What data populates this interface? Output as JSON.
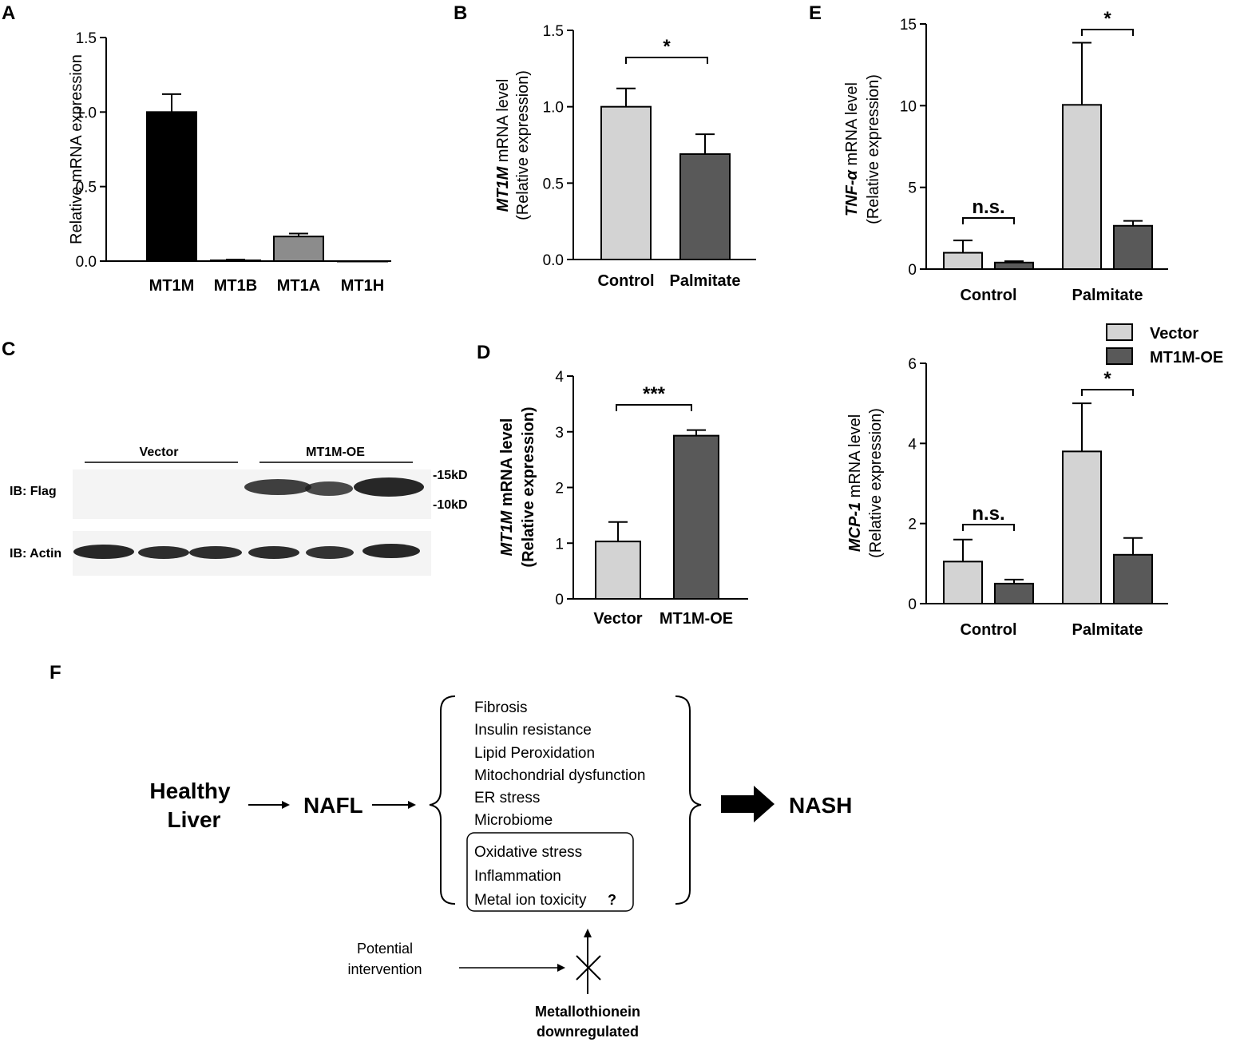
{
  "colors": {
    "black": "#000000",
    "light": "#d3d3d3",
    "dark": "#595959",
    "mid": "#8c8c8c"
  },
  "chart_data": [
    {
      "panel": "A",
      "type": "bar",
      "ylabel": "Relative mRNA expression",
      "categories": [
        "MT1M",
        "MT1B",
        "MT1A",
        "MT1H"
      ],
      "values": [
        1.0,
        0.005,
        0.165,
        0.0
      ],
      "errors": [
        0.12,
        0.005,
        0.02,
        0.0
      ],
      "yticks": [
        "0.0",
        "0.5",
        "1.0",
        "1.5"
      ],
      "ylim": [
        0,
        1.5
      ]
    },
    {
      "panel": "B",
      "type": "bar",
      "ylabel_gene": "MT1M",
      "ylabel_rest": " mRNA level",
      "ylabel2": "(Relative expression)",
      "categories": [
        "Control",
        "Palmitate"
      ],
      "values": [
        1.0,
        0.69
      ],
      "errors": [
        0.12,
        0.13
      ],
      "yticks": [
        "0.0",
        "0.5",
        "1.0",
        "1.5"
      ],
      "ylim": [
        0,
        1.5
      ],
      "significance": "*"
    },
    {
      "panel": "D",
      "type": "bar",
      "ylabel_gene": "MT1M",
      "ylabel_rest": " mRNA level",
      "ylabel2": "(Relative expression)",
      "categories": [
        "Vector",
        "MT1M-OE"
      ],
      "values": [
        1.03,
        2.93
      ],
      "errors": [
        0.35,
        0.1
      ],
      "yticks": [
        "0",
        "1",
        "2",
        "3",
        "4"
      ],
      "ylim": [
        0,
        4
      ],
      "significance": "***"
    },
    {
      "panel": "E-top",
      "type": "bar",
      "ylabel_gene": "TNF-α",
      "ylabel_rest": " mRNA level",
      "ylabel2": "(Relative expression)",
      "categories": [
        "Control",
        "Palmitate"
      ],
      "series": [
        {
          "name": "Vector",
          "values": [
            1.0,
            10.05
          ],
          "errors": [
            0.75,
            3.8
          ]
        },
        {
          "name": "MT1M-OE",
          "values": [
            0.4,
            2.65
          ],
          "errors": [
            0.08,
            0.3
          ]
        }
      ],
      "yticks": [
        "0",
        "5",
        "10",
        "15"
      ],
      "ylim": [
        0,
        15
      ],
      "significance": [
        "n.s.",
        "*"
      ]
    },
    {
      "panel": "E-bottom",
      "type": "bar",
      "ylabel_gene": "MCP-1",
      "ylabel_rest": " mRNA level",
      "ylabel2": "(Relative expression)",
      "categories": [
        "Control",
        "Palmitate"
      ],
      "series": [
        {
          "name": "Vector",
          "values": [
            1.05,
            3.8
          ],
          "errors": [
            0.55,
            1.2
          ]
        },
        {
          "name": "MT1M-OE",
          "values": [
            0.5,
            1.22
          ],
          "errors": [
            0.1,
            0.42
          ]
        }
      ],
      "yticks": [
        "0",
        "2",
        "4",
        "6"
      ],
      "ylim": [
        0,
        6
      ],
      "significance": [
        "n.s.",
        "*"
      ],
      "legend": "top-right"
    }
  ],
  "blot": {
    "panel": "C",
    "group1": "Vector",
    "group2": "MT1M-OE",
    "row1_label": "IB: Flag",
    "row2_label": "IB: Actin",
    "marker1": "-15kD",
    "marker2": "-10kD"
  },
  "panels": {
    "A": "A",
    "B": "B",
    "C": "C",
    "D": "D",
    "E": "E",
    "F": "F"
  },
  "scheme": {
    "healthy_line1": "Healthy",
    "healthy_line2": "Liver",
    "nafl": "NAFL",
    "nash": "NASH",
    "factors": [
      "Fibrosis",
      "Insulin resistance",
      "Lipid Peroxidation",
      "Mitochondrial dysfunction",
      "ER stress",
      "Microbiome"
    ],
    "boxed": [
      "Oxidative stress",
      "Inflammation",
      "Metal ion toxicity"
    ],
    "question": "?",
    "intervention_line1": "Potential",
    "intervention_line2": "intervention",
    "metallo_line1": "Metallothionein",
    "metallo_line2": "downregulated"
  }
}
